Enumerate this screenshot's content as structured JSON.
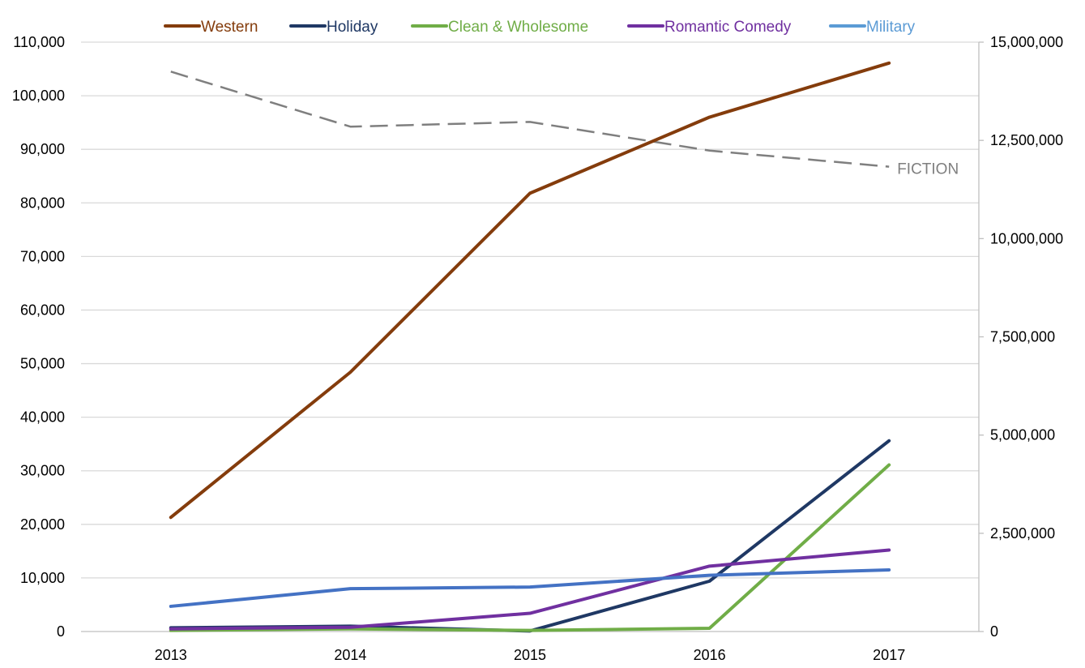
{
  "chart_data": {
    "type": "line",
    "title": "",
    "xlabel": "",
    "ylabel": "",
    "categories": [
      "2013",
      "2014",
      "2015",
      "2016",
      "2017"
    ],
    "ylim": [
      0,
      110000
    ],
    "y2lim": [
      0,
      15000000
    ],
    "y_ticks": [
      "0",
      "10,000",
      "20,000",
      "30,000",
      "40,000",
      "50,000",
      "60,000",
      "70,000",
      "80,000",
      "90,000",
      "100,000",
      "110,000"
    ],
    "y2_ticks": [
      "0",
      "2,500,000",
      "5,000,000",
      "7,500,000",
      "10,000,000",
      "12,500,000",
      "15,000,000"
    ],
    "grid": "horizontal",
    "legend_position": "top",
    "series": [
      {
        "name": "Western",
        "color": "#843c0c",
        "axis": "left",
        "values": [
          21300,
          48400,
          81800,
          96000,
          106100
        ]
      },
      {
        "name": "Holiday",
        "color": "#1f3864",
        "axis": "left",
        "values": [
          700,
          1000,
          100,
          9400,
          35600
        ]
      },
      {
        "name": "Clean & Wholesome",
        "color": "#70ad47",
        "axis": "left",
        "values": [
          200,
          500,
          200,
          600,
          31100
        ]
      },
      {
        "name": "Romantic Comedy",
        "color": "#7030a0",
        "axis": "left",
        "values": [
          500,
          800,
          3400,
          12200,
          15200
        ]
      },
      {
        "name": "Military",
        "color": "#4472c4",
        "axis": "left",
        "values": [
          4700,
          8000,
          8300,
          10500,
          11500
        ]
      }
    ],
    "reference_series": {
      "label": "FICTION",
      "color": "#7f7f7f",
      "axis": "right",
      "style": "dashed",
      "values": [
        14250000,
        12850000,
        12970000,
        12240000,
        11830000
      ]
    },
    "legend": [
      {
        "label": "Western",
        "color": "#843c0c"
      },
      {
        "label": "Holiday",
        "color": "#1f3864"
      },
      {
        "label": "Clean & Wholesome",
        "color": "#70ad47"
      },
      {
        "label": "Romantic Comedy",
        "color": "#7030a0"
      },
      {
        "label": "Military",
        "color": "#5b9bd5"
      }
    ]
  }
}
